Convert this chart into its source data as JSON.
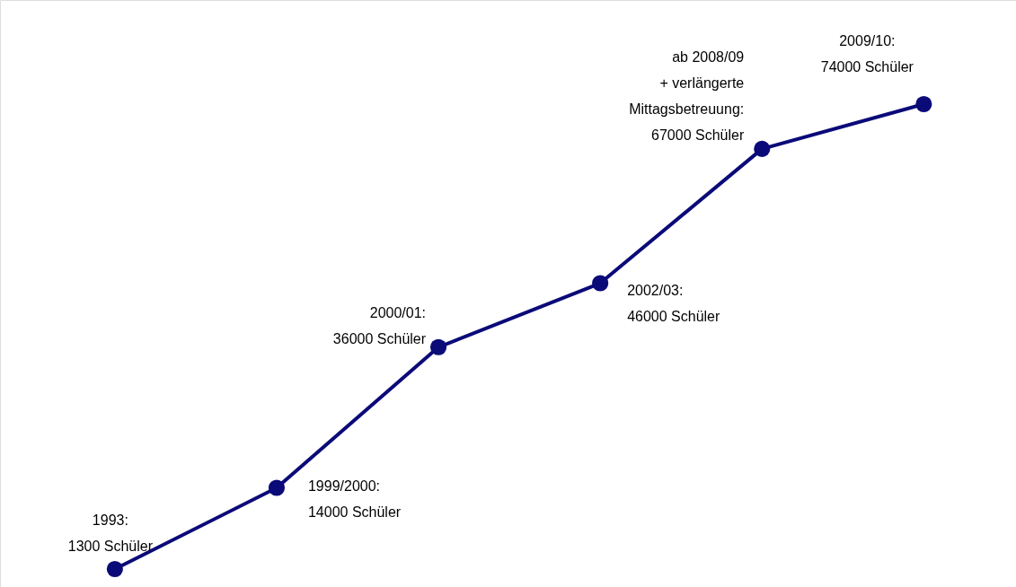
{
  "chart_data": {
    "type": "line",
    "categories": [
      null,
      null,
      null,
      null,
      null,
      null
    ],
    "series": [
      {
        "color": "#0a0a78",
        "values": [
          1300,
          14000,
          36000,
          46000,
          67000,
          74000
        ],
        "value_labels": [
          "1993:\n1300 Schüler",
          "1999/2000:\n14000 Schüler",
          "2000/01:\n36000 Schüler",
          "2002/03:\n46000 Schüler",
          "ab 2008/09\n+ verlängerte\nMittagsbetreuung:\n67000 Schüler",
          "2009/10:\n74000 Schüler"
        ]
      }
    ],
    "marker": "circle",
    "line_style": "solid",
    "grid": false,
    "tick_labels": false
  }
}
